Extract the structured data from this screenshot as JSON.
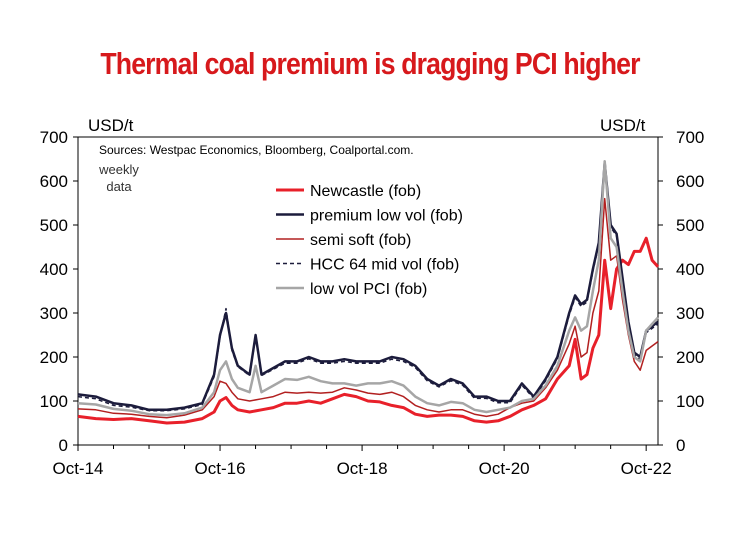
{
  "chart_data": {
    "type": "line",
    "title": "Thermal coal premium is dragging PCI higher",
    "ylabel_left": "USD/t",
    "ylabel_right": "USD/t",
    "source": "Sources: Westpac Economics, Bloomberg, Coalportal.com.",
    "frequency_note": [
      "weekly",
      "data"
    ],
    "ylim": [
      0,
      700
    ],
    "yticks": [
      0,
      100,
      200,
      300,
      400,
      500,
      600,
      700
    ],
    "xlim": [
      "2014-10",
      "2022-12"
    ],
    "xticks": [
      "Oct-14",
      "Oct-16",
      "Oct-18",
      "Oct-20",
      "Oct-22"
    ],
    "legend_position": "upper-center",
    "series": [
      {
        "name": "Newcastle (fob)",
        "color": "#e8202a",
        "width": 3,
        "dash": "",
        "points": [
          [
            "2014-10",
            65
          ],
          [
            "2015-01",
            60
          ],
          [
            "2015-04",
            58
          ],
          [
            "2015-07",
            60
          ],
          [
            "2015-10",
            55
          ],
          [
            "2016-01",
            50
          ],
          [
            "2016-04",
            52
          ],
          [
            "2016-07",
            60
          ],
          [
            "2016-09",
            75
          ],
          [
            "2016-10",
            100
          ],
          [
            "2016-11",
            108
          ],
          [
            "2016-12",
            90
          ],
          [
            "2017-01",
            80
          ],
          [
            "2017-03",
            75
          ],
          [
            "2017-05",
            80
          ],
          [
            "2017-07",
            85
          ],
          [
            "2017-09",
            95
          ],
          [
            "2017-11",
            95
          ],
          [
            "2018-01",
            100
          ],
          [
            "2018-03",
            95
          ],
          [
            "2018-05",
            105
          ],
          [
            "2018-07",
            115
          ],
          [
            "2018-09",
            110
          ],
          [
            "2018-11",
            100
          ],
          [
            "2019-01",
            98
          ],
          [
            "2019-03",
            90
          ],
          [
            "2019-05",
            85
          ],
          [
            "2019-07",
            70
          ],
          [
            "2019-09",
            65
          ],
          [
            "2019-11",
            68
          ],
          [
            "2020-01",
            68
          ],
          [
            "2020-03",
            65
          ],
          [
            "2020-05",
            55
          ],
          [
            "2020-07",
            52
          ],
          [
            "2020-09",
            55
          ],
          [
            "2020-11",
            65
          ],
          [
            "2021-01",
            80
          ],
          [
            "2021-03",
            90
          ],
          [
            "2021-05",
            105
          ],
          [
            "2021-07",
            150
          ],
          [
            "2021-09",
            180
          ],
          [
            "2021-10",
            240
          ],
          [
            "2021-11",
            150
          ],
          [
            "2021-12",
            160
          ],
          [
            "2022-01",
            220
          ],
          [
            "2022-02",
            250
          ],
          [
            "2022-03",
            420
          ],
          [
            "2022-04",
            310
          ],
          [
            "2022-05",
            400
          ],
          [
            "2022-06",
            420
          ],
          [
            "2022-07",
            410
          ],
          [
            "2022-08",
            440
          ],
          [
            "2022-09",
            440
          ],
          [
            "2022-10",
            470
          ],
          [
            "2022-11",
            420
          ],
          [
            "2022-12",
            405
          ]
        ]
      },
      {
        "name": "premium low vol (fob)",
        "color": "#1c1c3c",
        "width": 2.5,
        "dash": "",
        "points": [
          [
            "2014-10",
            115
          ],
          [
            "2015-01",
            110
          ],
          [
            "2015-04",
            95
          ],
          [
            "2015-07",
            90
          ],
          [
            "2015-10",
            80
          ],
          [
            "2016-01",
            80
          ],
          [
            "2016-04",
            85
          ],
          [
            "2016-07",
            95
          ],
          [
            "2016-09",
            160
          ],
          [
            "2016-10",
            250
          ],
          [
            "2016-11",
            300
          ],
          [
            "2016-12",
            220
          ],
          [
            "2017-01",
            180
          ],
          [
            "2017-03",
            160
          ],
          [
            "2017-04",
            250
          ],
          [
            "2017-05",
            160
          ],
          [
            "2017-07",
            175
          ],
          [
            "2017-09",
            190
          ],
          [
            "2017-11",
            190
          ],
          [
            "2018-01",
            200
          ],
          [
            "2018-03",
            190
          ],
          [
            "2018-05",
            190
          ],
          [
            "2018-07",
            195
          ],
          [
            "2018-09",
            190
          ],
          [
            "2018-11",
            190
          ],
          [
            "2019-01",
            190
          ],
          [
            "2019-03",
            200
          ],
          [
            "2019-05",
            195
          ],
          [
            "2019-07",
            180
          ],
          [
            "2019-09",
            150
          ],
          [
            "2019-11",
            135
          ],
          [
            "2020-01",
            150
          ],
          [
            "2020-03",
            140
          ],
          [
            "2020-05",
            110
          ],
          [
            "2020-07",
            110
          ],
          [
            "2020-09",
            100
          ],
          [
            "2020-11",
            100
          ],
          [
            "2021-01",
            140
          ],
          [
            "2021-03",
            110
          ],
          [
            "2021-05",
            150
          ],
          [
            "2021-07",
            200
          ],
          [
            "2021-09",
            300
          ],
          [
            "2021-10",
            340
          ],
          [
            "2021-11",
            320
          ],
          [
            "2021-12",
            330
          ],
          [
            "2022-01",
            400
          ],
          [
            "2022-02",
            460
          ],
          [
            "2022-03",
            640
          ],
          [
            "2022-04",
            500
          ],
          [
            "2022-05",
            480
          ],
          [
            "2022-06",
            380
          ],
          [
            "2022-07",
            280
          ],
          [
            "2022-08",
            210
          ],
          [
            "2022-09",
            200
          ],
          [
            "2022-10",
            260
          ],
          [
            "2022-11",
            270
          ],
          [
            "2022-12",
            280
          ]
        ]
      },
      {
        "name": "semi soft (fob)",
        "color": "#b22020",
        "width": 1.5,
        "dash": "",
        "points": [
          [
            "2014-10",
            82
          ],
          [
            "2015-01",
            80
          ],
          [
            "2015-04",
            72
          ],
          [
            "2015-07",
            70
          ],
          [
            "2015-10",
            65
          ],
          [
            "2016-01",
            62
          ],
          [
            "2016-04",
            68
          ],
          [
            "2016-07",
            80
          ],
          [
            "2016-09",
            110
          ],
          [
            "2016-10",
            145
          ],
          [
            "2016-11",
            140
          ],
          [
            "2016-12",
            120
          ],
          [
            "2017-01",
            105
          ],
          [
            "2017-03",
            100
          ],
          [
            "2017-05",
            105
          ],
          [
            "2017-07",
            110
          ],
          [
            "2017-09",
            120
          ],
          [
            "2017-11",
            118
          ],
          [
            "2018-01",
            120
          ],
          [
            "2018-03",
            118
          ],
          [
            "2018-05",
            120
          ],
          [
            "2018-07",
            130
          ],
          [
            "2018-09",
            125
          ],
          [
            "2018-11",
            118
          ],
          [
            "2019-01",
            115
          ],
          [
            "2019-03",
            120
          ],
          [
            "2019-05",
            110
          ],
          [
            "2019-07",
            90
          ],
          [
            "2019-09",
            80
          ],
          [
            "2019-11",
            75
          ],
          [
            "2020-01",
            80
          ],
          [
            "2020-03",
            80
          ],
          [
            "2020-05",
            70
          ],
          [
            "2020-07",
            65
          ],
          [
            "2020-09",
            70
          ],
          [
            "2020-11",
            85
          ],
          [
            "2021-01",
            95
          ],
          [
            "2021-03",
            100
          ],
          [
            "2021-05",
            130
          ],
          [
            "2021-07",
            170
          ],
          [
            "2021-09",
            230
          ],
          [
            "2021-10",
            270
          ],
          [
            "2021-11",
            200
          ],
          [
            "2021-12",
            210
          ],
          [
            "2022-01",
            300
          ],
          [
            "2022-02",
            350
          ],
          [
            "2022-03",
            560
          ],
          [
            "2022-04",
            420
          ],
          [
            "2022-05",
            430
          ],
          [
            "2022-06",
            330
          ],
          [
            "2022-07",
            250
          ],
          [
            "2022-08",
            190
          ],
          [
            "2022-09",
            170
          ],
          [
            "2022-10",
            215
          ],
          [
            "2022-11",
            225
          ],
          [
            "2022-12",
            235
          ]
        ]
      },
      {
        "name": "HCC 64 mid vol (fob)",
        "color": "#1c1c3c",
        "width": 1.5,
        "dash": "4,3",
        "points": [
          [
            "2014-10",
            110
          ],
          [
            "2015-01",
            105
          ],
          [
            "2015-04",
            90
          ],
          [
            "2015-07",
            86
          ],
          [
            "2015-10",
            78
          ],
          [
            "2016-01",
            78
          ],
          [
            "2016-04",
            82
          ],
          [
            "2016-07",
            92
          ],
          [
            "2016-09",
            155
          ],
          [
            "2016-10",
            245
          ],
          [
            "2016-11",
            310
          ],
          [
            "2016-12",
            215
          ],
          [
            "2017-01",
            178
          ],
          [
            "2017-03",
            158
          ],
          [
            "2017-04",
            245
          ],
          [
            "2017-05",
            158
          ],
          [
            "2017-07",
            172
          ],
          [
            "2017-09",
            186
          ],
          [
            "2017-11",
            186
          ],
          [
            "2018-01",
            196
          ],
          [
            "2018-03",
            186
          ],
          [
            "2018-05",
            186
          ],
          [
            "2018-07",
            190
          ],
          [
            "2018-09",
            186
          ],
          [
            "2018-11",
            186
          ],
          [
            "2019-01",
            186
          ],
          [
            "2019-03",
            195
          ],
          [
            "2019-05",
            190
          ],
          [
            "2019-07",
            176
          ],
          [
            "2019-09",
            146
          ],
          [
            "2019-11",
            132
          ],
          [
            "2020-01",
            146
          ],
          [
            "2020-03",
            136
          ],
          [
            "2020-05",
            106
          ],
          [
            "2020-07",
            106
          ],
          [
            "2020-09",
            96
          ],
          [
            "2020-11",
            96
          ],
          [
            "2021-01",
            136
          ],
          [
            "2021-03",
            106
          ],
          [
            "2021-05",
            146
          ],
          [
            "2021-07",
            196
          ],
          [
            "2021-09",
            295
          ],
          [
            "2021-10",
            335
          ],
          [
            "2021-11",
            315
          ],
          [
            "2021-12",
            325
          ],
          [
            "2022-01",
            395
          ],
          [
            "2022-02",
            455
          ],
          [
            "2022-03",
            630
          ],
          [
            "2022-04",
            495
          ],
          [
            "2022-05",
            475
          ],
          [
            "2022-06",
            375
          ],
          [
            "2022-07",
            275
          ],
          [
            "2022-08",
            205
          ],
          [
            "2022-09",
            195
          ],
          [
            "2022-10",
            255
          ],
          [
            "2022-11",
            265
          ],
          [
            "2022-12",
            275
          ]
        ]
      },
      {
        "name": "low vol PCI (fob)",
        "color": "#a6a6a6",
        "width": 2.5,
        "dash": "",
        "points": [
          [
            "2014-10",
            95
          ],
          [
            "2015-01",
            92
          ],
          [
            "2015-04",
            82
          ],
          [
            "2015-07",
            78
          ],
          [
            "2015-10",
            70
          ],
          [
            "2016-01",
            68
          ],
          [
            "2016-04",
            72
          ],
          [
            "2016-07",
            85
          ],
          [
            "2016-09",
            120
          ],
          [
            "2016-10",
            170
          ],
          [
            "2016-11",
            190
          ],
          [
            "2016-12",
            150
          ],
          [
            "2017-01",
            130
          ],
          [
            "2017-03",
            120
          ],
          [
            "2017-04",
            180
          ],
          [
            "2017-05",
            120
          ],
          [
            "2017-07",
            135
          ],
          [
            "2017-09",
            150
          ],
          [
            "2017-11",
            148
          ],
          [
            "2018-01",
            155
          ],
          [
            "2018-03",
            145
          ],
          [
            "2018-05",
            140
          ],
          [
            "2018-07",
            140
          ],
          [
            "2018-09",
            135
          ],
          [
            "2018-11",
            140
          ],
          [
            "2019-01",
            140
          ],
          [
            "2019-03",
            145
          ],
          [
            "2019-05",
            135
          ],
          [
            "2019-07",
            110
          ],
          [
            "2019-09",
            95
          ],
          [
            "2019-11",
            90
          ],
          [
            "2020-01",
            98
          ],
          [
            "2020-03",
            95
          ],
          [
            "2020-05",
            80
          ],
          [
            "2020-07",
            75
          ],
          [
            "2020-09",
            80
          ],
          [
            "2020-11",
            85
          ],
          [
            "2021-01",
            100
          ],
          [
            "2021-03",
            105
          ],
          [
            "2021-05",
            135
          ],
          [
            "2021-07",
            180
          ],
          [
            "2021-09",
            260
          ],
          [
            "2021-10",
            290
          ],
          [
            "2021-11",
            260
          ],
          [
            "2021-12",
            270
          ],
          [
            "2022-01",
            350
          ],
          [
            "2022-02",
            420
          ],
          [
            "2022-03",
            645
          ],
          [
            "2022-04",
            470
          ],
          [
            "2022-05",
            450
          ],
          [
            "2022-06",
            350
          ],
          [
            "2022-07",
            260
          ],
          [
            "2022-08",
            200
          ],
          [
            "2022-09",
            190
          ],
          [
            "2022-10",
            260
          ],
          [
            "2022-11",
            275
          ],
          [
            "2022-12",
            290
          ]
        ]
      }
    ]
  }
}
